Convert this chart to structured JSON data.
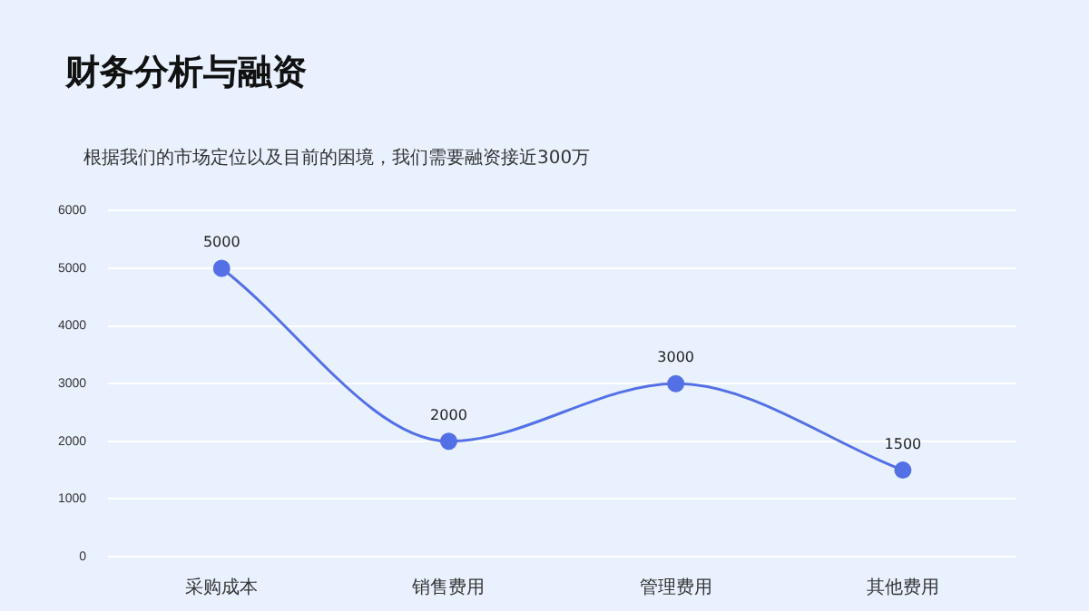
{
  "chart_data": {
    "type": "line",
    "title": "财务分析与融资",
    "subtitle": "根据我们的市场定位以及目前的困境，我们需要融资接近300万",
    "categories": [
      "采购成本",
      "销售费用",
      "管理费用",
      "其他费用"
    ],
    "series": [
      {
        "color": "#5470e6",
        "values": [
          5000,
          2000,
          3000,
          1500
        ]
      }
    ],
    "ylim": [
      0,
      6000
    ],
    "yticks": [
      0,
      1000,
      2000,
      3000,
      4000,
      5000,
      6000
    ],
    "grid": "y",
    "marker": "circle",
    "line_style": "solid",
    "data_labels": true,
    "legend": false
  }
}
